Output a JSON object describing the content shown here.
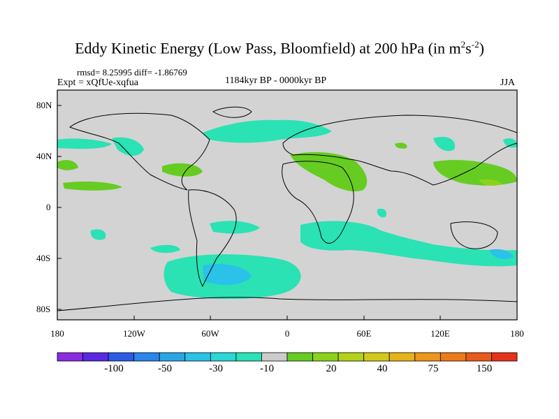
{
  "title": {
    "main": "Eddy Kinetic Energy (Low Pass, Bloomfield) at 200 hPa (in m",
    "exp1": "2",
    "mid": "s",
    "exp2": "-2",
    "close": ")"
  },
  "stats": "rmsd= 8.25995 diff= -1.86769",
  "experiment": "Expt = xQfUe-xqfua",
  "period": "1184kyr BP - 0000kyr BP",
  "season": "JJA",
  "map": {
    "background": "#d3d3d3",
    "x_ticks": [
      "180",
      "120W",
      "60W",
      "0",
      "60E",
      "120E",
      "180"
    ],
    "y_ticks": [
      "80N",
      "40N",
      "0",
      "40S",
      "80S"
    ]
  },
  "colorbar": {
    "colors": [
      "#8a2be2",
      "#5a28e0",
      "#2a5ae6",
      "#2a86e8",
      "#2aa6e6",
      "#2ac2e8",
      "#2ad6d6",
      "#2ae2b4",
      "#cccccc",
      "#66cc22",
      "#8cd21a",
      "#b4d21a",
      "#d2c81a",
      "#e6b41a",
      "#ec961a",
      "#ec7a1a",
      "#ea5a1a",
      "#e63218"
    ],
    "labels": [
      "-100",
      "-50",
      "-30",
      "-10",
      "20",
      "40",
      "75",
      "150"
    ]
  },
  "chart_data": {
    "type": "heatmap",
    "title": "Eddy Kinetic Energy (Low Pass, Bloomfield) at 200 hPa (in m^2 s^-2)",
    "variable": "Eddy Kinetic Energy difference",
    "level": "200 hPa",
    "units": "m^2 s^-2",
    "season": "JJA",
    "comparison": "1184kyr BP - 0000kyr BP",
    "experiment": "xQfUe-xqfua",
    "rmsd": 8.25995,
    "diff": -1.86769,
    "lon_range": [
      -180,
      180
    ],
    "lat_range": [
      -90,
      90
    ],
    "regions": [
      {
        "name": "Southern Ocean Pacific sector",
        "sign": "negative",
        "approx_value": -15
      },
      {
        "name": "South Atlantic / Indian Ocean band",
        "sign": "negative",
        "approx_value": -10
      },
      {
        "name": "North Atlantic band",
        "sign": "negative",
        "approx_value": -10
      },
      {
        "name": "Mediterranean / Middle East",
        "sign": "positive",
        "approx_value": 15
      },
      {
        "name": "East Asia / Northwest Pacific",
        "sign": "positive",
        "approx_value": 15
      }
    ]
  }
}
